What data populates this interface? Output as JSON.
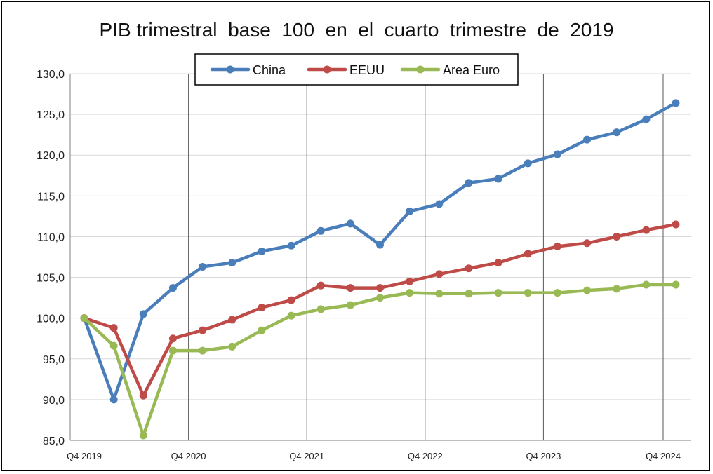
{
  "chart_data": {
    "type": "line",
    "title": "PIB trimestral  base  100  en  el  cuarto  trimestre  de  2019",
    "xlabel": "",
    "ylabel": "",
    "ylim": [
      85,
      130
    ],
    "ytick_values": [
      85,
      90,
      95,
      100,
      105,
      110,
      115,
      120,
      125,
      130
    ],
    "ytick_labels": [
      "85,0",
      "90,0",
      "95,0",
      "100,0",
      "105,0",
      "110,0",
      "115,0",
      "120,0",
      "125,0",
      "130,0"
    ],
    "xtick_labels": [
      {
        "index": 0,
        "label": "Q4 2019"
      },
      {
        "index": 4,
        "label": "Q4 2020"
      },
      {
        "index": 8,
        "label": "Q4 2021"
      },
      {
        "index": 12,
        "label": "Q4 2022"
      },
      {
        "index": 16,
        "label": "Q4 2023"
      },
      {
        "index": 20,
        "label": "Q4 2024"
      }
    ],
    "grid": {
      "horizontal": true,
      "vertical_at_labeled_ticks": true
    },
    "legend_position": "top-center",
    "series": [
      {
        "name": "China",
        "color": "#4a7ebb",
        "values": [
          100.0,
          90.0,
          100.5,
          103.7,
          106.3,
          106.8,
          108.2,
          108.9,
          110.7,
          111.6,
          109.0,
          113.1,
          114.0,
          116.6,
          117.1,
          119.0,
          120.1,
          121.9,
          122.8,
          124.4,
          126.4
        ]
      },
      {
        "name": "EEUU",
        "color": "#be4b48",
        "values": [
          100.0,
          98.8,
          90.5,
          97.5,
          98.5,
          99.8,
          101.3,
          102.2,
          104.0,
          103.7,
          103.7,
          104.5,
          105.4,
          106.1,
          106.8,
          107.9,
          108.8,
          109.2,
          110.0,
          110.8,
          111.5
        ]
      },
      {
        "name": "Area Euro",
        "color": "#98b954",
        "values": [
          100.0,
          96.6,
          85.6,
          96.0,
          96.0,
          96.5,
          98.5,
          100.3,
          101.1,
          101.6,
          102.5,
          103.1,
          103.0,
          103.0,
          103.1,
          103.1,
          103.1,
          103.4,
          103.6,
          104.1,
          104.1
        ]
      }
    ]
  }
}
